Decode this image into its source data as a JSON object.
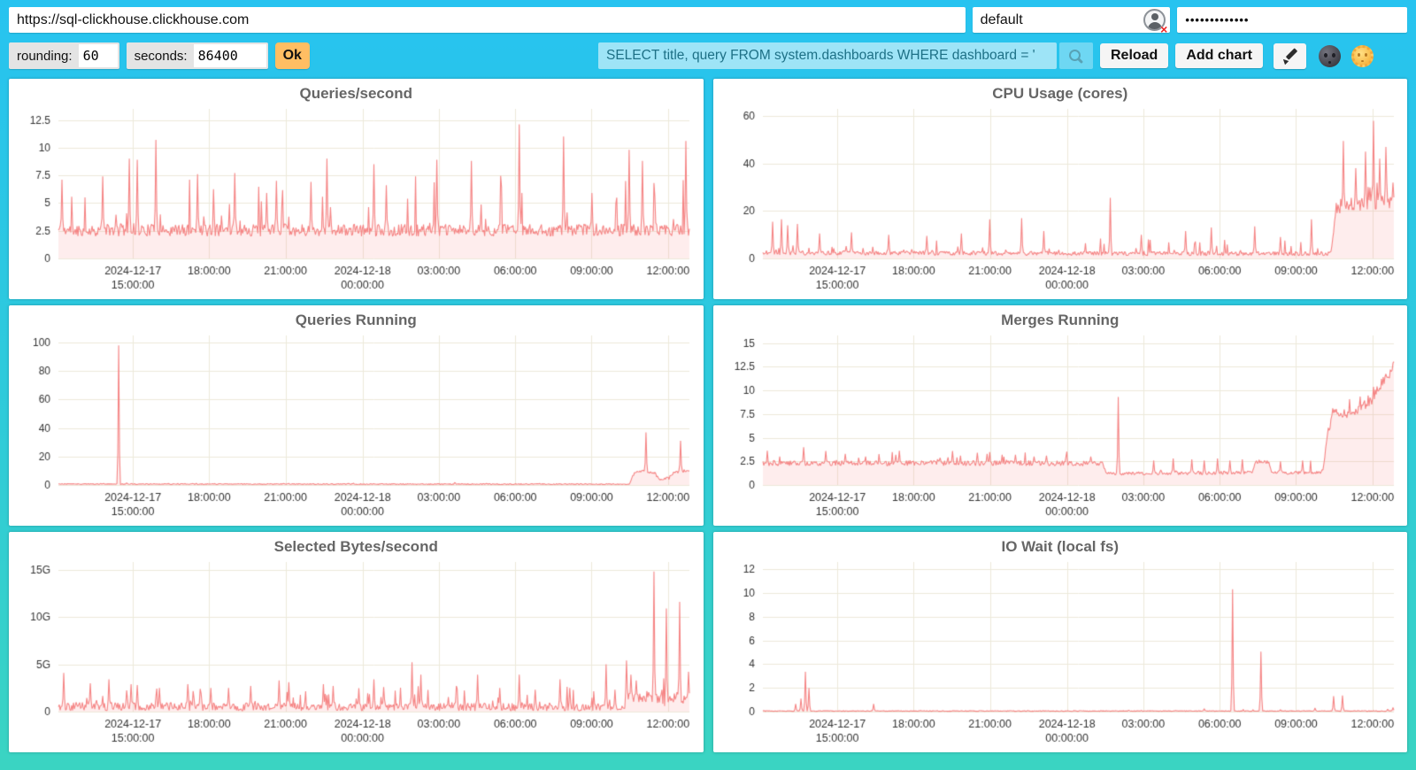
{
  "address_bar": {
    "url": "https://sql-clickhouse.clickhouse.com",
    "user": "default",
    "password_masked": "•••••••••••••"
  },
  "toolbar": {
    "rounding_label": "rounding:",
    "rounding_value": "60",
    "seconds_label": "seconds:",
    "seconds_value": "86400",
    "ok_label": "Ok",
    "query_value": "SELECT title, query FROM system.dashboards WHERE dashboard = '",
    "reload_label": "Reload",
    "add_chart_label": "Add chart"
  },
  "icons": {
    "run": "magnifier",
    "edit": "pencil",
    "theme_dark": "new-moon-face",
    "theme_light": "sun-with-face",
    "user_status": "user-avatar-broken"
  },
  "colors": {
    "background_top": "#27c3f0",
    "background_bottom": "#3ad4c2",
    "chart_line": "#f58585",
    "chart_fill": "rgba(245,133,133,0.15)",
    "grid": "#ece9da",
    "title": "#666666",
    "tick_text": "#333333",
    "ok_button": "#ffbe63"
  },
  "chart_data": [
    {
      "type": "area",
      "title": "Queries/second",
      "seed": 11,
      "ymax": 13.5,
      "vmin": 1.75,
      "yticks": [
        {
          "v": 0,
          "label": "0"
        },
        {
          "v": 2.5,
          "label": "2.5"
        },
        {
          "v": 5,
          "label": "5"
        },
        {
          "v": 7.5,
          "label": "7.5"
        },
        {
          "v": 10,
          "label": "10"
        },
        {
          "v": 12.5,
          "label": "12.5"
        }
      ],
      "xticks": [
        {
          "frac": 0.118,
          "line1": "2024-12-17",
          "line2": "15:00:00"
        },
        {
          "frac": 0.239,
          "line1": "18:00:00"
        },
        {
          "frac": 0.36,
          "line1": "21:00:00"
        },
        {
          "frac": 0.482,
          "line1": "2024-12-18",
          "line2": "00:00:00"
        },
        {
          "frac": 0.603,
          "line1": "03:00:00"
        },
        {
          "frac": 0.724,
          "line1": "06:00:00"
        },
        {
          "frac": 0.845,
          "line1": "09:00:00"
        },
        {
          "frac": 0.966,
          "line1": "12:00:00"
        }
      ],
      "baseline": [
        [
          0,
          2.55
        ],
        [
          1,
          2.55
        ]
      ],
      "noise": [
        [
          0,
          0.55
        ],
        [
          1,
          0.55
        ]
      ],
      "random_spikes": {
        "prob": 0.07,
        "max": 4.5
      },
      "spikes": [
        [
          0.005,
          7.1
        ],
        [
          0.07,
          7.4
        ],
        [
          0.112,
          9.0
        ],
        [
          0.125,
          8.9
        ],
        [
          0.155,
          10.7
        ],
        [
          0.22,
          7.6
        ],
        [
          0.28,
          7.7
        ],
        [
          0.33,
          5.9
        ],
        [
          0.345,
          7.0
        ],
        [
          0.4,
          6.9
        ],
        [
          0.425,
          9.0
        ],
        [
          0.5,
          8.5
        ],
        [
          0.52,
          6.6
        ],
        [
          0.6,
          8.9
        ],
        [
          0.655,
          8.8
        ],
        [
          0.73,
          12.1
        ],
        [
          0.8,
          11.0
        ],
        [
          0.845,
          5.9
        ],
        [
          0.905,
          9.8
        ],
        [
          0.925,
          8.8
        ],
        [
          0.945,
          5.6
        ],
        [
          0.995,
          10.6
        ]
      ]
    },
    {
      "type": "area",
      "title": "CPU Usage (cores)",
      "seed": 22,
      "ymax": 63,
      "vmin": 0.9,
      "yticks": [
        {
          "v": 0,
          "label": "0"
        },
        {
          "v": 20,
          "label": "20"
        },
        {
          "v": 40,
          "label": "40"
        },
        {
          "v": 60,
          "label": "60"
        }
      ],
      "xticks": [
        {
          "frac": 0.118,
          "line1": "2024-12-17",
          "line2": "15:00:00"
        },
        {
          "frac": 0.239,
          "line1": "18:00:00"
        },
        {
          "frac": 0.36,
          "line1": "21:00:00"
        },
        {
          "frac": 0.482,
          "line1": "2024-12-18",
          "line2": "00:00:00"
        },
        {
          "frac": 0.603,
          "line1": "03:00:00"
        },
        {
          "frac": 0.724,
          "line1": "06:00:00"
        },
        {
          "frac": 0.845,
          "line1": "09:00:00"
        },
        {
          "frac": 0.966,
          "line1": "12:00:00"
        }
      ],
      "baseline": [
        [
          0,
          2.3
        ],
        [
          0.9,
          2.0
        ],
        [
          0.908,
          20
        ],
        [
          0.93,
          22
        ],
        [
          0.96,
          23
        ],
        [
          1,
          24
        ]
      ],
      "noise": [
        [
          0,
          0.9
        ],
        [
          0.9,
          0.9
        ],
        [
          0.908,
          2.6
        ],
        [
          1,
          3.0
        ]
      ],
      "random_spikes": {
        "prob": 0.06,
        "max": 6
      },
      "spikes": [
        [
          0.015,
          15.5
        ],
        [
          0.03,
          16.5
        ],
        [
          0.04,
          14
        ],
        [
          0.055,
          14.5
        ],
        [
          0.09,
          10.5
        ],
        [
          0.14,
          11
        ],
        [
          0.2,
          10
        ],
        [
          0.26,
          9.5
        ],
        [
          0.315,
          10.5
        ],
        [
          0.36,
          16.5
        ],
        [
          0.41,
          17
        ],
        [
          0.445,
          11.5
        ],
        [
          0.55,
          25.5
        ],
        [
          0.6,
          10
        ],
        [
          0.67,
          11.5
        ],
        [
          0.71,
          13
        ],
        [
          0.78,
          13.5
        ],
        [
          0.82,
          9
        ],
        [
          0.87,
          16.5
        ],
        [
          0.92,
          49.5
        ],
        [
          0.94,
          38
        ],
        [
          0.955,
          45
        ],
        [
          0.968,
          58
        ],
        [
          0.978,
          42
        ],
        [
          0.988,
          47
        ],
        [
          0.998,
          32
        ]
      ]
    },
    {
      "type": "area",
      "title": "Queries Running",
      "seed": 33,
      "ymax": 105,
      "vmin": 0.05,
      "yticks": [
        {
          "v": 0,
          "label": "0"
        },
        {
          "v": 20,
          "label": "20"
        },
        {
          "v": 40,
          "label": "40"
        },
        {
          "v": 60,
          "label": "60"
        },
        {
          "v": 80,
          "label": "80"
        },
        {
          "v": 100,
          "label": "100"
        }
      ],
      "xticks": [
        {
          "frac": 0.118,
          "line1": "2024-12-17",
          "line2": "15:00:00"
        },
        {
          "frac": 0.239,
          "line1": "18:00:00"
        },
        {
          "frac": 0.36,
          "line1": "21:00:00"
        },
        {
          "frac": 0.482,
          "line1": "2024-12-18",
          "line2": "00:00:00"
        },
        {
          "frac": 0.603,
          "line1": "03:00:00"
        },
        {
          "frac": 0.724,
          "line1": "06:00:00"
        },
        {
          "frac": 0.845,
          "line1": "09:00:00"
        },
        {
          "frac": 0.966,
          "line1": "12:00:00"
        }
      ],
      "baseline": [
        [
          0,
          0.7
        ],
        [
          0.905,
          0.6
        ],
        [
          0.912,
          8
        ],
        [
          0.92,
          10
        ],
        [
          0.935,
          9
        ],
        [
          0.945,
          8.5
        ],
        [
          0.952,
          4.2
        ],
        [
          0.968,
          4.8
        ],
        [
          0.975,
          9
        ],
        [
          0.99,
          9.5
        ],
        [
          1,
          10.5
        ]
      ],
      "noise": [
        [
          0,
          0.35
        ],
        [
          0.905,
          0.35
        ],
        [
          0.912,
          0.9
        ],
        [
          1,
          0.9
        ]
      ],
      "random_spikes": {
        "prob": 0.012,
        "max": 1.2
      },
      "spikes": [
        [
          0.095,
          98
        ],
        [
          0.931,
          37
        ],
        [
          0.986,
          31
        ]
      ]
    },
    {
      "type": "area",
      "title": "Merges Running",
      "seed": 44,
      "ymax": 15.8,
      "vmin": 0.95,
      "yticks": [
        {
          "v": 0,
          "label": "0"
        },
        {
          "v": 2.5,
          "label": "2.5"
        },
        {
          "v": 5,
          "label": "5"
        },
        {
          "v": 7.5,
          "label": "7.5"
        },
        {
          "v": 10,
          "label": "10"
        },
        {
          "v": 12.5,
          "label": "12.5"
        },
        {
          "v": 15,
          "label": "15"
        }
      ],
      "xticks": [
        {
          "frac": 0.118,
          "line1": "2024-12-17",
          "line2": "15:00:00"
        },
        {
          "frac": 0.239,
          "line1": "18:00:00"
        },
        {
          "frac": 0.36,
          "line1": "21:00:00"
        },
        {
          "frac": 0.482,
          "line1": "2024-12-18",
          "line2": "00:00:00"
        },
        {
          "frac": 0.603,
          "line1": "03:00:00"
        },
        {
          "frac": 0.724,
          "line1": "06:00:00"
        },
        {
          "frac": 0.845,
          "line1": "09:00:00"
        },
        {
          "frac": 0.966,
          "line1": "12:00:00"
        }
      ],
      "baseline": [
        [
          0,
          2.3
        ],
        [
          0.538,
          2.3
        ],
        [
          0.543,
          1.2
        ],
        [
          0.775,
          1.3
        ],
        [
          0.78,
          2.4
        ],
        [
          0.802,
          2.4
        ],
        [
          0.807,
          1.3
        ],
        [
          0.88,
          1.3
        ],
        [
          0.887,
          1.4
        ],
        [
          0.895,
          5.5
        ],
        [
          0.903,
          7.6
        ],
        [
          0.92,
          7.7
        ],
        [
          0.935,
          7.3
        ],
        [
          0.95,
          8.2
        ],
        [
          0.962,
          8.8
        ],
        [
          0.972,
          9.8
        ],
        [
          0.982,
          10.8
        ],
        [
          0.99,
          11.5
        ],
        [
          1,
          12.6
        ]
      ],
      "noise": [
        [
          0,
          0.28
        ],
        [
          0.538,
          0.28
        ],
        [
          0.543,
          0.18
        ],
        [
          0.88,
          0.18
        ],
        [
          0.895,
          0.55
        ],
        [
          1,
          0.6
        ]
      ],
      "random_spikes": {
        "prob": 0.05,
        "max": 1.1
      },
      "spikes": [
        [
          0.065,
          4.0
        ],
        [
          0.1,
          3.6
        ],
        [
          0.13,
          3.3
        ],
        [
          0.21,
          3.2
        ],
        [
          0.3,
          3.6
        ],
        [
          0.34,
          3.4
        ],
        [
          0.355,
          3.3
        ],
        [
          0.4,
          3.2
        ],
        [
          0.43,
          3.0
        ],
        [
          0.45,
          3.1
        ],
        [
          0.48,
          3.0
        ],
        [
          0.52,
          3.0
        ],
        [
          0.563,
          9.3
        ],
        [
          0.62,
          2.6
        ],
        [
          0.65,
          2.8
        ],
        [
          0.68,
          2.7
        ],
        [
          0.7,
          2.6
        ],
        [
          0.72,
          2.8
        ],
        [
          0.74,
          2.6
        ],
        [
          0.76,
          2.7
        ],
        [
          0.82,
          2.5
        ],
        [
          0.855,
          2.6
        ]
      ]
    },
    {
      "type": "area",
      "title": "Selected Bytes/second",
      "seed": 55,
      "ymax": 15.8,
      "vmin": 0.08,
      "unit": "G",
      "yticks": [
        {
          "v": 0,
          "label": "0"
        },
        {
          "v": 5,
          "label": "5G"
        },
        {
          "v": 10,
          "label": "10G"
        },
        {
          "v": 15,
          "label": "15G"
        }
      ],
      "xticks": [
        {
          "frac": 0.118,
          "line1": "2024-12-17",
          "line2": "15:00:00"
        },
        {
          "frac": 0.239,
          "line1": "18:00:00"
        },
        {
          "frac": 0.36,
          "line1": "21:00:00"
        },
        {
          "frac": 0.482,
          "line1": "2024-12-18",
          "line2": "00:00:00"
        },
        {
          "frac": 0.603,
          "line1": "03:00:00"
        },
        {
          "frac": 0.724,
          "line1": "06:00:00"
        },
        {
          "frac": 0.845,
          "line1": "09:00:00"
        },
        {
          "frac": 0.966,
          "line1": "12:00:00"
        }
      ],
      "baseline": [
        [
          0,
          0.55
        ],
        [
          0.895,
          0.45
        ],
        [
          0.902,
          1.3
        ],
        [
          0.93,
          1.6
        ],
        [
          0.95,
          1.2
        ],
        [
          1,
          1.3
        ]
      ],
      "noise": [
        [
          0,
          0.45
        ],
        [
          0.895,
          0.4
        ],
        [
          0.902,
          0.7
        ],
        [
          1,
          0.7
        ]
      ],
      "random_spikes": {
        "prob": 0.08,
        "max": 1.8
      },
      "spikes": [
        [
          0.008,
          4.1
        ],
        [
          0.05,
          3.0
        ],
        [
          0.08,
          3.4
        ],
        [
          0.115,
          2.9
        ],
        [
          0.125,
          2.8
        ],
        [
          0.16,
          2.5
        ],
        [
          0.205,
          2.9
        ],
        [
          0.225,
          2.4
        ],
        [
          0.27,
          2.5
        ],
        [
          0.305,
          2.7
        ],
        [
          0.35,
          3.3
        ],
        [
          0.365,
          3.1
        ],
        [
          0.42,
          2.9
        ],
        [
          0.435,
          2.7
        ],
        [
          0.5,
          3.4
        ],
        [
          0.515,
          2.6
        ],
        [
          0.56,
          5.2
        ],
        [
          0.575,
          3.9
        ],
        [
          0.63,
          2.7
        ],
        [
          0.665,
          3.9
        ],
        [
          0.7,
          2.5
        ],
        [
          0.73,
          3.9
        ],
        [
          0.755,
          2.3
        ],
        [
          0.795,
          3.4
        ],
        [
          0.81,
          2.5
        ],
        [
          0.868,
          5.0
        ],
        [
          0.9,
          5.4
        ],
        [
          0.908,
          3.9
        ],
        [
          0.916,
          3.3
        ],
        [
          0.944,
          14.8
        ],
        [
          0.963,
          10.9
        ],
        [
          0.985,
          11.6
        ],
        [
          0.998,
          4.2
        ]
      ]
    },
    {
      "type": "area",
      "title": "IO Wait (local fs)",
      "seed": 66,
      "ymax": 12.6,
      "vmin": 0.005,
      "yticks": [
        {
          "v": 0,
          "label": "0"
        },
        {
          "v": 2,
          "label": "2"
        },
        {
          "v": 4,
          "label": "4"
        },
        {
          "v": 6,
          "label": "6"
        },
        {
          "v": 8,
          "label": "8"
        },
        {
          "v": 10,
          "label": "10"
        },
        {
          "v": 12,
          "label": "12"
        }
      ],
      "xticks": [
        {
          "frac": 0.118,
          "line1": "2024-12-17",
          "line2": "15:00:00"
        },
        {
          "frac": 0.239,
          "line1": "18:00:00"
        },
        {
          "frac": 0.36,
          "line1": "21:00:00"
        },
        {
          "frac": 0.482,
          "line1": "2024-12-18",
          "line2": "00:00:00"
        },
        {
          "frac": 0.603,
          "line1": "03:00:00"
        },
        {
          "frac": 0.724,
          "line1": "06:00:00"
        },
        {
          "frac": 0.845,
          "line1": "09:00:00"
        },
        {
          "frac": 0.966,
          "line1": "12:00:00"
        }
      ],
      "baseline": [
        [
          0,
          0.05
        ],
        [
          1,
          0.05
        ]
      ],
      "noise": [
        [
          0,
          0.028
        ],
        [
          1,
          0.028
        ]
      ],
      "random_spikes": {
        "prob": 0.01,
        "max": 0.12
      },
      "spikes": [
        [
          0.052,
          0.65
        ],
        [
          0.06,
          1.1
        ],
        [
          0.068,
          3.35
        ],
        [
          0.073,
          2.0
        ],
        [
          0.175,
          0.65
        ],
        [
          0.25,
          0.1
        ],
        [
          0.42,
          0.09
        ],
        [
          0.58,
          0.12
        ],
        [
          0.6,
          0.1
        ],
        [
          0.655,
          0.1
        ],
        [
          0.7,
          0.25
        ],
        [
          0.745,
          10.3
        ],
        [
          0.79,
          5.05
        ],
        [
          0.875,
          0.3
        ],
        [
          0.905,
          1.3
        ],
        [
          0.918,
          1.35
        ],
        [
          0.99,
          0.2
        ],
        [
          0.999,
          0.35
        ]
      ]
    }
  ]
}
